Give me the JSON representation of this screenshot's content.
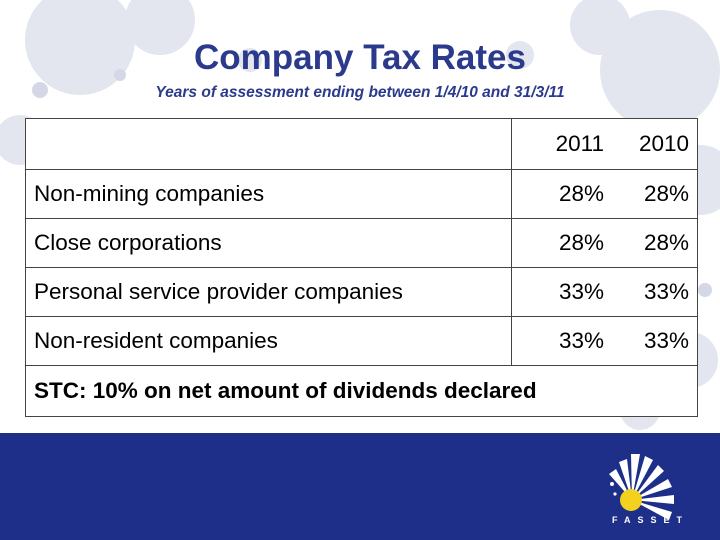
{
  "slide": {
    "title": "Company Tax Rates",
    "subtitle": "Years of assessment ending between 1/4/10 and 31/3/11"
  },
  "table": {
    "year_headers": [
      "2011",
      "2010"
    ],
    "rows": [
      {
        "label": "Non-mining companies",
        "rate_2011": "28%",
        "rate_2010": "28%"
      },
      {
        "label": "Close corporations",
        "rate_2011": "28%",
        "rate_2010": "28%"
      },
      {
        "label": "Personal service provider companies",
        "rate_2011": "33%",
        "rate_2010": "33%"
      },
      {
        "label": "Non-resident companies",
        "rate_2011": "33%",
        "rate_2010": "33%"
      }
    ],
    "footer": "STC: 10% on net amount of dividends declared"
  },
  "logo": {
    "text": "FASSET",
    "icon": "fasset-sunburst-icon"
  },
  "colors": {
    "title": "#2b3a8c",
    "band": "#1d2f88",
    "logo_dot": "#f2d21e",
    "bg_blob": "#e4e6f0"
  }
}
